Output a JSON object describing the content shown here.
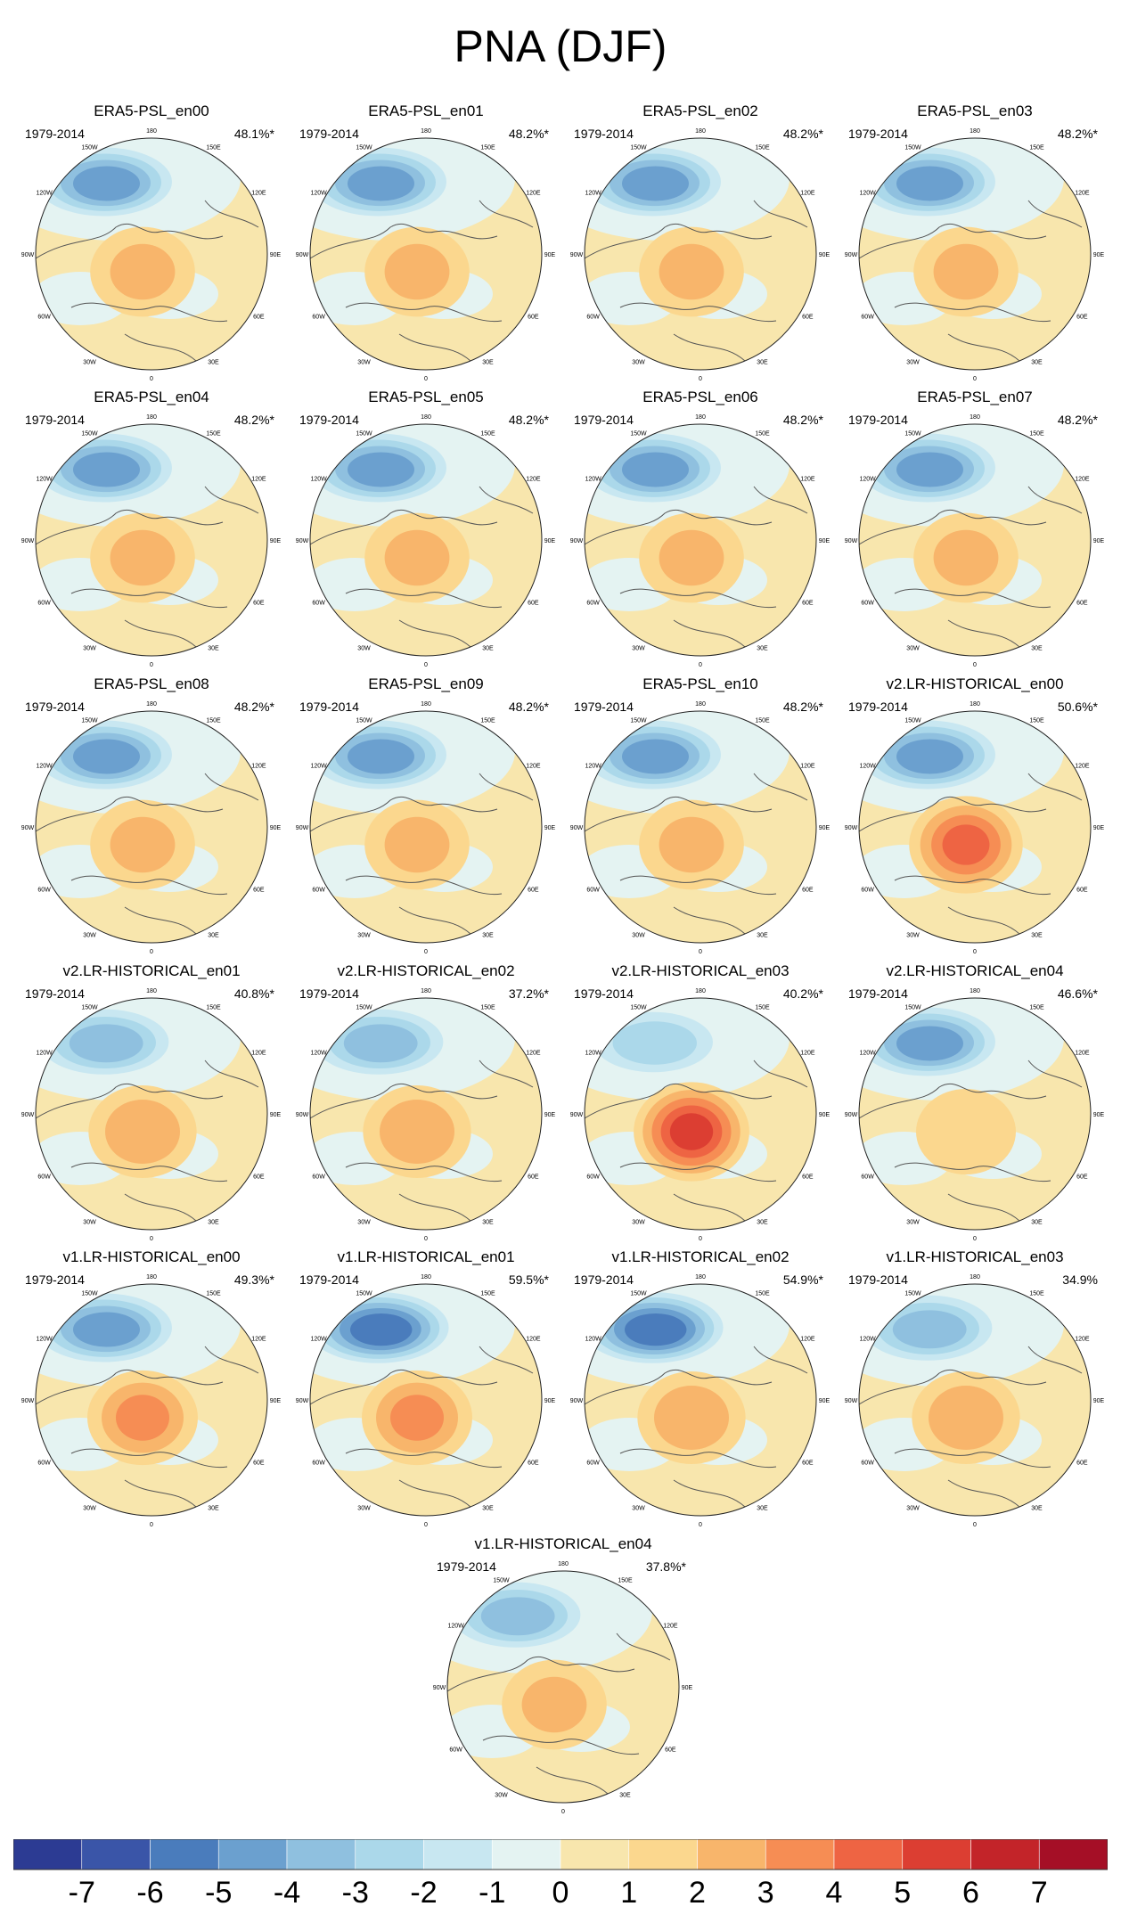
{
  "title": "PNA (DJF)",
  "chart_data": {
    "type": "heatmap",
    "description_type": "polar stereographic map panels",
    "common": {
      "period": "1979-2014",
      "longitude_labels": [
        "180",
        "150E",
        "120E",
        "90E",
        "60E",
        "30E",
        "0",
        "30W",
        "60W",
        "90W",
        "120W",
        "150W"
      ]
    },
    "panels": [
      {
        "title": "ERA5-PSL_en00",
        "period": "1979-2014",
        "percent": "48.1%*",
        "low_center": -5.5,
        "high_center": 2.0
      },
      {
        "title": "ERA5-PSL_en01",
        "period": "1979-2014",
        "percent": "48.2%*",
        "low_center": -5.5,
        "high_center": 2.0
      },
      {
        "title": "ERA5-PSL_en02",
        "period": "1979-2014",
        "percent": "48.2%*",
        "low_center": -5.5,
        "high_center": 2.0
      },
      {
        "title": "ERA5-PSL_en03",
        "period": "1979-2014",
        "percent": "48.2%*",
        "low_center": -5.5,
        "high_center": 2.0
      },
      {
        "title": "ERA5-PSL_en04",
        "period": "1979-2014",
        "percent": "48.2%*",
        "low_center": -5.5,
        "high_center": 2.0
      },
      {
        "title": "ERA5-PSL_en05",
        "period": "1979-2014",
        "percent": "48.2%*",
        "low_center": -5.5,
        "high_center": 2.0
      },
      {
        "title": "ERA5-PSL_en06",
        "period": "1979-2014",
        "percent": "48.2%*",
        "low_center": -5.5,
        "high_center": 2.0
      },
      {
        "title": "ERA5-PSL_en07",
        "period": "1979-2014",
        "percent": "48.2%*",
        "low_center": -5.5,
        "high_center": 2.0
      },
      {
        "title": "ERA5-PSL_en08",
        "period": "1979-2014",
        "percent": "48.2%*",
        "low_center": -5.5,
        "high_center": 2.0
      },
      {
        "title": "ERA5-PSL_en09",
        "period": "1979-2014",
        "percent": "48.2%*",
        "low_center": -5.5,
        "high_center": 2.0
      },
      {
        "title": "ERA5-PSL_en10",
        "period": "1979-2014",
        "percent": "48.2%*",
        "low_center": -5.5,
        "high_center": 2.0
      },
      {
        "title": "v2.LR-HISTORICAL_en00",
        "period": "1979-2014",
        "percent": "50.6%*",
        "low_center": -5.5,
        "high_center": 4.0
      },
      {
        "title": "v2.LR-HISTORICAL_en01",
        "period": "1979-2014",
        "percent": "40.8%*",
        "low_center": -4.5,
        "high_center": 2.5
      },
      {
        "title": "v2.LR-HISTORICAL_en02",
        "period": "1979-2014",
        "percent": "37.2%*",
        "low_center": -4.5,
        "high_center": 2.5
      },
      {
        "title": "v2.LR-HISTORICAL_en03",
        "period": "1979-2014",
        "percent": "40.2%*",
        "low_center": -3.5,
        "high_center": 5.0
      },
      {
        "title": "v2.LR-HISTORICAL_en04",
        "period": "1979-2014",
        "percent": "46.6%*",
        "low_center": -5.5,
        "high_center": 1.5
      },
      {
        "title": "v1.LR-HISTORICAL_en00",
        "period": "1979-2014",
        "percent": "49.3%*",
        "low_center": -5.5,
        "high_center": 3.0
      },
      {
        "title": "v1.LR-HISTORICAL_en01",
        "period": "1979-2014",
        "percent": "59.5%*",
        "low_center": -6.5,
        "high_center": 3.0
      },
      {
        "title": "v1.LR-HISTORICAL_en02",
        "period": "1979-2014",
        "percent": "54.9%*",
        "low_center": -6.5,
        "high_center": 2.5
      },
      {
        "title": "v1.LR-HISTORICAL_en03",
        "period": "1979-2014",
        "percent": "34.9%",
        "low_center": -4.5,
        "high_center": 2.5
      },
      {
        "title": "v1.LR-HISTORICAL_en04",
        "period": "1979-2014",
        "percent": "37.8%*",
        "low_center": -4.5,
        "high_center": 2.0
      }
    ],
    "colorbar": {
      "labels": [
        "-7",
        "-6",
        "-5",
        "-4",
        "-3",
        "-2",
        "-1",
        "0",
        "1",
        "2",
        "3",
        "4",
        "5",
        "6",
        "7"
      ],
      "levels": [
        -7,
        -6,
        -5,
        -4,
        -3,
        -2,
        -1,
        0,
        1,
        2,
        3,
        4,
        5,
        6,
        7
      ],
      "colors": [
        "#2c3b93",
        "#3a55a8",
        "#4a7cbc",
        "#6ba0cf",
        "#8fc0df",
        "#abd8ea",
        "#c8e7f1",
        "#e4f3f2",
        "#f8e6ad",
        "#fbd78e",
        "#f8b56b",
        "#f68d54",
        "#ee6443",
        "#dc3e32",
        "#c32429",
        "#a50f26"
      ]
    }
  }
}
